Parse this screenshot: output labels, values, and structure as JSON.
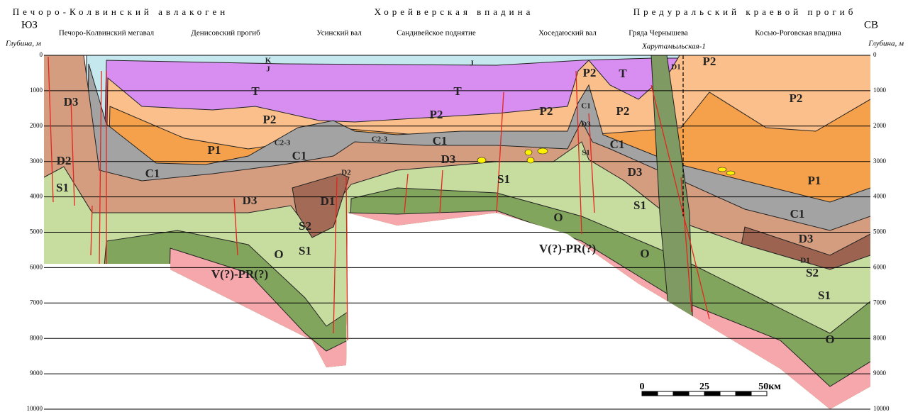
{
  "header": {
    "regions": [
      "Печоро-Колвинский авлакоген",
      "Хорейверская впадина",
      "Предуральский краевой прогиб"
    ],
    "directions": [
      "ЮЗ",
      "СВ"
    ]
  },
  "structures": [
    "Печоро-Колвинский мегавал",
    "Денисовский прогиб",
    "Усинский вал",
    "Сандивейское поднятие",
    "Хоседаюский вал",
    "Гряда Чернышева",
    "Косью-Роговская впадина"
  ],
  "axis": {
    "label": "Глубина, м",
    "ticks": [
      0,
      1000,
      2000,
      3000,
      4000,
      5000,
      6000,
      7000,
      8000,
      9000,
      10000
    ]
  },
  "well": "Харутамыльская-1",
  "layers": [
    "K",
    "J",
    "J",
    "T",
    "T",
    "T",
    "P2",
    "D1",
    "P2",
    "P2",
    "D3",
    "C1",
    "D3",
    "C1",
    "P2",
    "P2",
    "P2",
    "P2",
    "P1",
    "C2-3",
    "C1",
    "C2-3",
    "C1",
    "D3",
    "S1",
    "D3",
    "C1",
    "D2",
    "S1",
    "D2",
    "D3",
    "D1",
    "S1",
    "S1",
    "P1",
    "C1",
    "D3",
    "D1",
    "S2",
    "S1",
    "O",
    "O",
    "O",
    "S2",
    "S1",
    "O",
    "V(?)-PR(?)",
    "V(?)-PR(?)"
  ],
  "scale": [
    "0",
    "25",
    "50км"
  ]
}
